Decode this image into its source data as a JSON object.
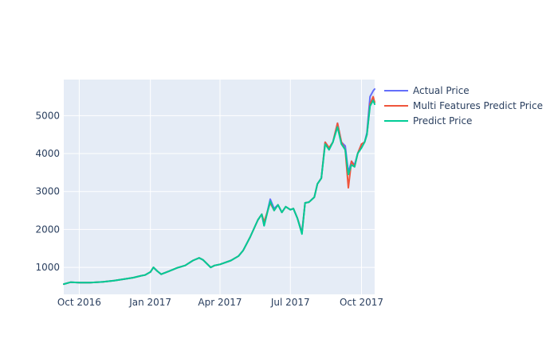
{
  "chart_data": {
    "type": "line",
    "title": "",
    "xlabel": "",
    "ylabel": "",
    "x_range": [
      "2016-09-11",
      "2017-10-18"
    ],
    "y_range": [
      290,
      5950
    ],
    "x_ticks": [
      {
        "date": "2016-10-01",
        "label": "Oct 2016"
      },
      {
        "date": "2017-01-01",
        "label": "Jan 2017"
      },
      {
        "date": "2017-04-01",
        "label": "Apr 2017"
      },
      {
        "date": "2017-07-01",
        "label": "Jul 2017"
      },
      {
        "date": "2017-10-01",
        "label": "Oct 2017"
      }
    ],
    "y_ticks": [
      {
        "value": 1000,
        "label": "1000"
      },
      {
        "value": 2000,
        "label": "2000"
      },
      {
        "value": 3000,
        "label": "3000"
      },
      {
        "value": 4000,
        "label": "4000"
      },
      {
        "value": 5000,
        "label": "5000"
      }
    ],
    "grid": true,
    "legend_position": "right",
    "x": [
      "2016-09-11",
      "2016-09-20",
      "2016-10-01",
      "2016-10-15",
      "2016-11-01",
      "2016-11-15",
      "2016-12-01",
      "2016-12-10",
      "2016-12-20",
      "2016-12-25",
      "2017-01-01",
      "2017-01-05",
      "2017-01-10",
      "2017-01-15",
      "2017-01-25",
      "2017-02-05",
      "2017-02-15",
      "2017-02-25",
      "2017-03-05",
      "2017-03-10",
      "2017-03-15",
      "2017-03-20",
      "2017-03-25",
      "2017-04-01",
      "2017-04-15",
      "2017-04-25",
      "2017-05-01",
      "2017-05-10",
      "2017-05-20",
      "2017-05-25",
      "2017-05-28",
      "2017-06-05",
      "2017-06-10",
      "2017-06-15",
      "2017-06-20",
      "2017-06-25",
      "2017-07-01",
      "2017-07-05",
      "2017-07-10",
      "2017-07-16",
      "2017-07-20",
      "2017-07-25",
      "2017-08-01",
      "2017-08-05",
      "2017-08-10",
      "2017-08-15",
      "2017-08-20",
      "2017-08-25",
      "2017-08-31",
      "2017-09-05",
      "2017-09-10",
      "2017-09-14",
      "2017-09-18",
      "2017-09-22",
      "2017-09-26",
      "2017-10-01",
      "2017-10-05",
      "2017-10-08",
      "2017-10-12",
      "2017-10-16",
      "2017-10-18"
    ],
    "series": [
      {
        "name": "Actual Price",
        "color": "#636efa",
        "values": [
          560,
          610,
          600,
          600,
          620,
          650,
          700,
          730,
          780,
          800,
          880,
          1000,
          900,
          820,
          900,
          990,
          1050,
          1180,
          1250,
          1200,
          1100,
          1000,
          1050,
          1080,
          1180,
          1300,
          1450,
          1800,
          2250,
          2400,
          2100,
          2800,
          2550,
          2650,
          2450,
          2600,
          2520,
          2550,
          2300,
          1930,
          2700,
          2720,
          2850,
          3200,
          3350,
          4300,
          4150,
          4300,
          4800,
          4300,
          4200,
          3500,
          3800,
          3700,
          4000,
          4250,
          4300,
          4550,
          5500,
          5650,
          5700
        ]
      },
      {
        "name": "Multi Features Predict Price",
        "color": "#EF553B",
        "values": [
          560,
          610,
          600,
          600,
          620,
          650,
          700,
          730,
          780,
          800,
          880,
          1000,
          900,
          820,
          900,
          990,
          1050,
          1180,
          1250,
          1200,
          1100,
          1000,
          1050,
          1080,
          1180,
          1300,
          1450,
          1800,
          2250,
          2400,
          2200,
          2700,
          2500,
          2650,
          2450,
          2600,
          2520,
          2550,
          2300,
          1900,
          2700,
          2720,
          2850,
          3200,
          3350,
          4300,
          4150,
          4300,
          4800,
          4300,
          4100,
          3100,
          3800,
          3650,
          4000,
          4250,
          4300,
          4500,
          5300,
          5500,
          5350
        ]
      },
      {
        "name": "Predict Price",
        "color": "#00cc96",
        "values": [
          560,
          610,
          600,
          600,
          620,
          650,
          700,
          730,
          780,
          800,
          880,
          1000,
          900,
          820,
          900,
          990,
          1050,
          1180,
          1250,
          1200,
          1100,
          1000,
          1050,
          1080,
          1180,
          1300,
          1450,
          1800,
          2250,
          2400,
          2100,
          2750,
          2500,
          2650,
          2450,
          2600,
          2520,
          2550,
          2300,
          1880,
          2700,
          2720,
          2850,
          3200,
          3350,
          4250,
          4100,
          4300,
          4700,
          4250,
          4100,
          3450,
          3700,
          3650,
          4000,
          4150,
          4300,
          4500,
          5250,
          5400,
          5300
        ]
      }
    ]
  }
}
